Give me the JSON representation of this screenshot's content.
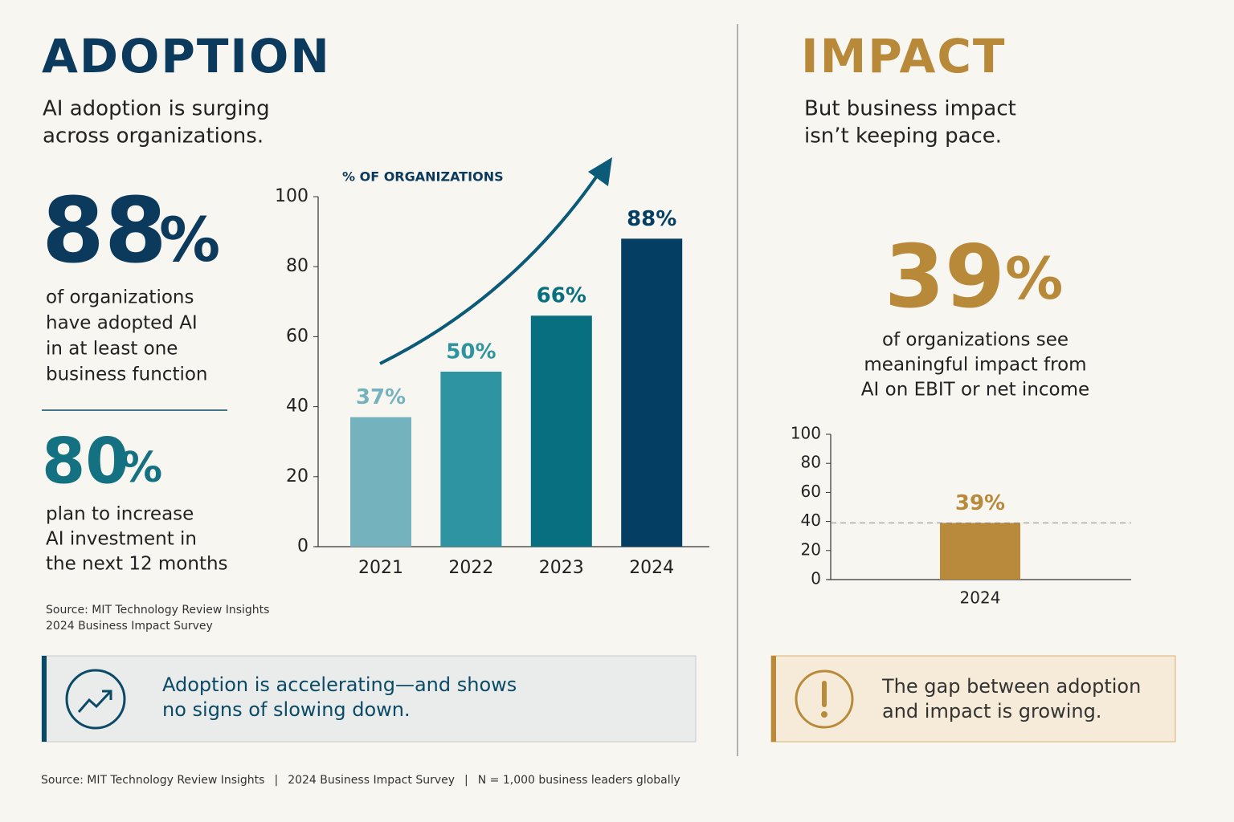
{
  "adoption": {
    "title": "ADOPTION",
    "subtitle_lines": [
      "AI adoption is surging",
      "across organizations."
    ],
    "stats": [
      {
        "number": "88",
        "unit": "%",
        "lines": [
          "of organizations",
          "have adopted AI",
          "in at least one",
          "business function"
        ]
      },
      {
        "number": "80",
        "unit": "%",
        "lines": [
          "plan to increase",
          "AI investment in",
          "the next 12 months"
        ]
      }
    ],
    "source_lines": [
      "Source: MIT Technology Review Insights",
      "2024 Business Impact Survey"
    ],
    "callout_lines": [
      "Adoption is accelerating—and shows",
      "no signs of slowing down."
    ]
  },
  "impact": {
    "title": "IMPACT",
    "subtitle_lines": [
      "But business impact",
      "isn’t keeping pace."
    ],
    "stat": {
      "number": "39",
      "unit": "%",
      "lines": [
        "of organizations see",
        "meaningful impact from",
        "AI on EBIT or net income"
      ]
    },
    "callout_lines": [
      "The gap between adoption",
      "and impact is growing."
    ]
  },
  "footer": {
    "items": [
      "Source: MIT Technology Review Insights",
      "2024 Business Impact Survey",
      "N = 1,000 business leaders globally"
    ],
    "separator": "|"
  },
  "chart_data": [
    {
      "type": "bar",
      "y_label": "% OF ORGANIZATIONS",
      "categories": [
        "2021",
        "2022",
        "2023",
        "2024"
      ],
      "values": [
        37,
        50,
        66,
        88
      ],
      "value_labels": [
        "37%",
        "50%",
        "66%",
        "88%"
      ],
      "colors": [
        "#74b3bd",
        "#2e94a1",
        "#076f80",
        "#043f63"
      ],
      "ylim": [
        0,
        100
      ],
      "yticks": [
        0,
        20,
        40,
        60,
        80,
        100
      ]
    },
    {
      "type": "bar",
      "categories": [
        "2024"
      ],
      "values": [
        39
      ],
      "value_labels": [
        "39%"
      ],
      "colors": [
        "#b98a3c"
      ],
      "ylim": [
        0,
        100
      ],
      "yticks": [
        0,
        20,
        40,
        60,
        80,
        100
      ]
    }
  ]
}
